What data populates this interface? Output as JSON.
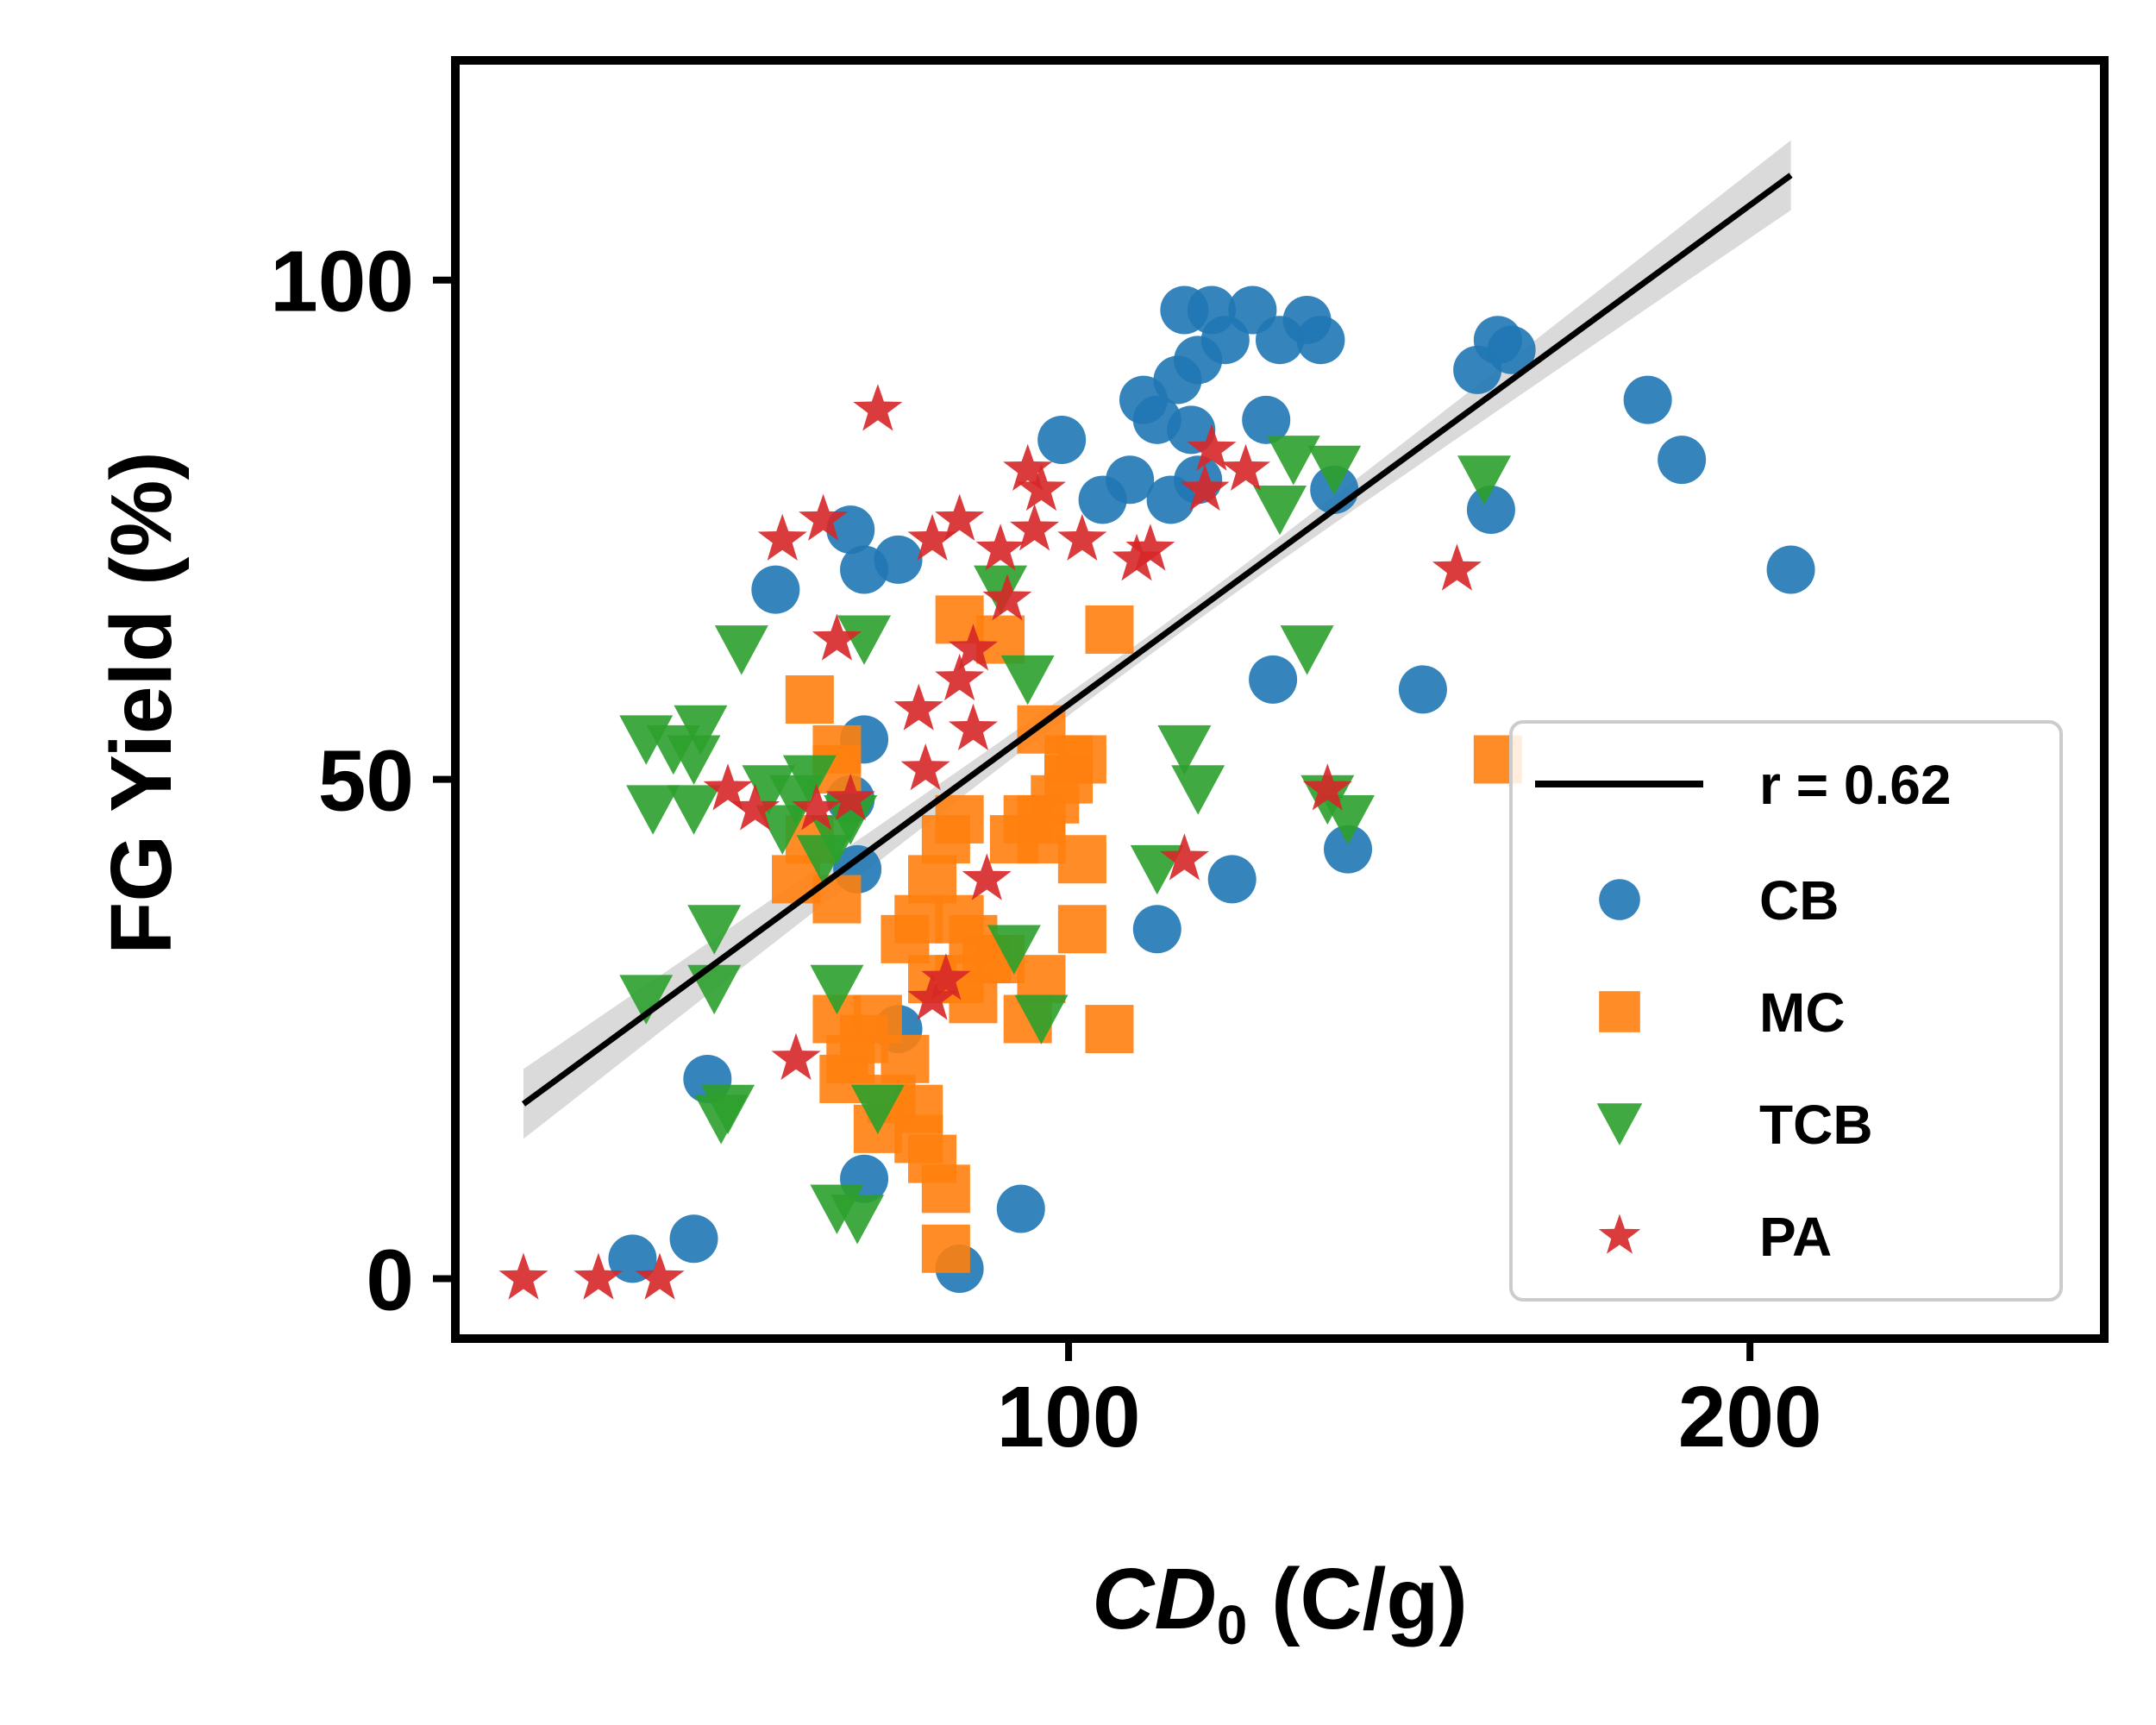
{
  "chart_data": {
    "type": "scatter",
    "xlabel_main": "CD",
    "xlabel_sub": "0",
    "xlabel_unit": " (C/g)",
    "ylabel": "FG Yield (%)",
    "xlim": [
      10,
      252
    ],
    "ylim": [
      -6,
      122
    ],
    "x_ticks": [
      100,
      200
    ],
    "y_ticks": [
      0,
      50,
      100
    ],
    "x_tick_labels": [
      "100",
      "200"
    ],
    "y_tick_labels": [
      "0",
      "50",
      "100"
    ],
    "grid": false,
    "legend_position": "lower-right",
    "fit": {
      "label": "r = 0.62",
      "x_start": 20,
      "y_start": 17.5,
      "x_end": 206,
      "y_end": 110.5,
      "band_half_width_ends": 3.5,
      "band_half_width_mid": 1.0,
      "color": "#000000",
      "band_color": "#d3d3d3"
    },
    "series": [
      {
        "name": "CB",
        "marker": "circle",
        "color": "#1f77b4",
        "points": [
          [
            36,
            2
          ],
          [
            45,
            4
          ],
          [
            47,
            20
          ],
          [
            84,
            1
          ],
          [
            93,
            7
          ],
          [
            70,
            10
          ],
          [
            75,
            25
          ],
          [
            119,
            92
          ],
          [
            57,
            69
          ],
          [
            68,
            75
          ],
          [
            70,
            71
          ],
          [
            75,
            72
          ],
          [
            99,
            84
          ],
          [
            105,
            78
          ],
          [
            109,
            80
          ],
          [
            111,
            88
          ],
          [
            113,
            86
          ],
          [
            115,
            78
          ],
          [
            116,
            90
          ],
          [
            117,
            97
          ],
          [
            118,
            85
          ],
          [
            119,
            80
          ],
          [
            121,
            97
          ],
          [
            123,
            94
          ],
          [
            127,
            97
          ],
          [
            129,
            86
          ],
          [
            130,
            60
          ],
          [
            131,
            94
          ],
          [
            135,
            96
          ],
          [
            137,
            94
          ],
          [
            139,
            79
          ],
          [
            141,
            43
          ],
          [
            113,
            35
          ],
          [
            124,
            40
          ],
          [
            68,
            48
          ],
          [
            69,
            41
          ],
          [
            70,
            54
          ],
          [
            152,
            59
          ],
          [
            160,
            91
          ],
          [
            162,
            77
          ],
          [
            163,
            94
          ],
          [
            165,
            93
          ],
          [
            185,
            88
          ],
          [
            190,
            82
          ],
          [
            206,
            71
          ]
        ]
      },
      {
        "name": "MC",
        "marker": "square",
        "color": "#ff7f0e",
        "points": [
          [
            62,
            58
          ],
          [
            66,
            53
          ],
          [
            66,
            51
          ],
          [
            62,
            44
          ],
          [
            60,
            40
          ],
          [
            66,
            38
          ],
          [
            66,
            26
          ],
          [
            68,
            22
          ],
          [
            67,
            20
          ],
          [
            70,
            24
          ],
          [
            72,
            26
          ],
          [
            72,
            15
          ],
          [
            74,
            18
          ],
          [
            76,
            22
          ],
          [
            78,
            17
          ],
          [
            78,
            14
          ],
          [
            80,
            12
          ],
          [
            82,
            9
          ],
          [
            82,
            3
          ],
          [
            78,
            36
          ],
          [
            76,
            34
          ],
          [
            80,
            40
          ],
          [
            82,
            44
          ],
          [
            84,
            46
          ],
          [
            84,
            36
          ],
          [
            86,
            34
          ],
          [
            80,
            30
          ],
          [
            84,
            30
          ],
          [
            86,
            28
          ],
          [
            88,
            32
          ],
          [
            90,
            32
          ],
          [
            92,
            44
          ],
          [
            94,
            46
          ],
          [
            96,
            46
          ],
          [
            96,
            44
          ],
          [
            96,
            55
          ],
          [
            98,
            48
          ],
          [
            100,
            52
          ],
          [
            100,
            50
          ],
          [
            102,
            52
          ],
          [
            102,
            42
          ],
          [
            102,
            35
          ],
          [
            96,
            30
          ],
          [
            94,
            26
          ],
          [
            84,
            66
          ],
          [
            90,
            64
          ],
          [
            106,
            65
          ],
          [
            106,
            25
          ],
          [
            163,
            52
          ]
        ]
      },
      {
        "name": "TCB",
        "marker": "tri-down",
        "color": "#2ca02c",
        "points": [
          [
            38,
            54
          ],
          [
            39,
            47
          ],
          [
            42,
            53
          ],
          [
            45,
            52
          ],
          [
            46,
            55
          ],
          [
            45,
            47
          ],
          [
            48,
            35
          ],
          [
            48,
            29
          ],
          [
            50,
            17
          ],
          [
            49,
            16
          ],
          [
            52,
            63
          ],
          [
            56,
            49
          ],
          [
            58,
            45
          ],
          [
            60,
            48
          ],
          [
            62,
            50
          ],
          [
            64,
            42
          ],
          [
            66,
            44
          ],
          [
            66,
            29
          ],
          [
            68,
            46
          ],
          [
            70,
            64
          ],
          [
            66,
            7
          ],
          [
            69,
            6
          ],
          [
            72,
            17
          ],
          [
            90,
            69
          ],
          [
            94,
            60
          ],
          [
            92,
            33
          ],
          [
            96,
            26
          ],
          [
            113,
            41
          ],
          [
            117,
            53
          ],
          [
            119,
            49
          ],
          [
            131,
            77
          ],
          [
            133,
            82
          ],
          [
            139,
            81
          ],
          [
            135,
            63
          ],
          [
            141,
            46
          ],
          [
            138,
            48
          ],
          [
            161,
            80
          ],
          [
            38,
            28
          ]
        ]
      },
      {
        "name": "PA",
        "marker": "star",
        "color": "#d62728",
        "points": [
          [
            20,
            0
          ],
          [
            31,
            0
          ],
          [
            40,
            0
          ],
          [
            50,
            49
          ],
          [
            54,
            47
          ],
          [
            60,
            22
          ],
          [
            63,
            47
          ],
          [
            66,
            64
          ],
          [
            68,
            48
          ],
          [
            72,
            87
          ],
          [
            78,
            57
          ],
          [
            79,
            51
          ],
          [
            80,
            74
          ],
          [
            80,
            28
          ],
          [
            84,
            60
          ],
          [
            84,
            76
          ],
          [
            86,
            63
          ],
          [
            86,
            55
          ],
          [
            90,
            73
          ],
          [
            91,
            68
          ],
          [
            94,
            81
          ],
          [
            95,
            75
          ],
          [
            96,
            79
          ],
          [
            102,
            74
          ],
          [
            110,
            72
          ],
          [
            112,
            73
          ],
          [
            120,
            79
          ],
          [
            121,
            83
          ],
          [
            126,
            81
          ],
          [
            117,
            42
          ],
          [
            138,
            49
          ],
          [
            157,
            71
          ],
          [
            58,
            74
          ],
          [
            64,
            76
          ],
          [
            82,
            30
          ],
          [
            88,
            40
          ]
        ]
      }
    ]
  }
}
